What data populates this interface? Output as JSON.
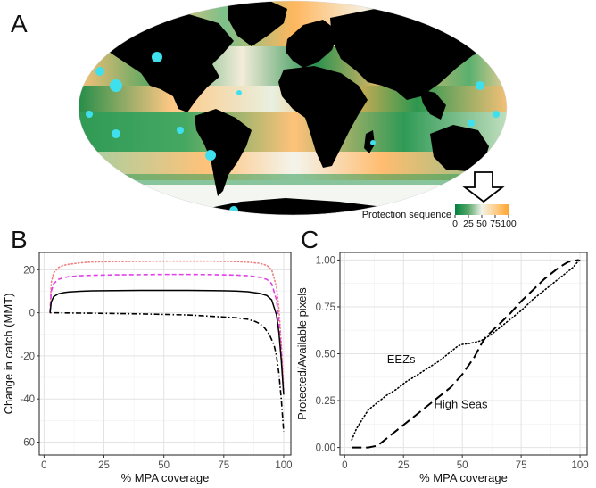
{
  "panels": {
    "a": {
      "letter": "A",
      "legend": {
        "title": "Protection sequence",
        "ticks": [
          "0",
          "25",
          "50",
          "75",
          "100"
        ],
        "colors": [
          "#00803c",
          "#5aa86b",
          "#f2f2ea",
          "#ffcf8a",
          "#ffa531"
        ]
      },
      "colors": {
        "ocean_green": "#259650",
        "ocean_orange": "#ffc27a",
        "land": "#000000",
        "ice": "#f4f7f4",
        "marker": "#3fe0ee"
      }
    },
    "b": {
      "letter": "B"
    },
    "c": {
      "letter": "C"
    }
  },
  "chart_data": [
    {
      "type": "map",
      "panel": "A",
      "legend_title": "Protection sequence",
      "legend_range": [
        0,
        100
      ],
      "legend_ticks": [
        0,
        25,
        50,
        75,
        100
      ]
    },
    {
      "type": "line",
      "panel": "B",
      "xlabel": "% MPA coverage",
      "ylabel": "Change in catch (MMT)",
      "xlim": [
        -2,
        103
      ],
      "ylim": [
        -66,
        28
      ],
      "xticks": [
        0,
        25,
        50,
        75,
        100
      ],
      "yticks": [
        -60,
        -40,
        -20,
        0,
        20
      ],
      "grid": true,
      "series": [
        {
          "style": "dotted",
          "color": "#f08080",
          "x": [
            2.5,
            3,
            4,
            6,
            8,
            10,
            15,
            20,
            30,
            40,
            50,
            60,
            70,
            80,
            85,
            90,
            93,
            95,
            97,
            98,
            99,
            100
          ],
          "y": [
            0,
            14,
            18.5,
            21,
            22,
            22.5,
            23.2,
            23.6,
            23.8,
            23.9,
            24,
            24,
            24,
            23.8,
            23.5,
            23,
            22,
            20,
            12,
            2,
            -14,
            -36
          ]
        },
        {
          "style": "dashed",
          "color": "#e040e8",
          "x": [
            2.5,
            3,
            4,
            6,
            8,
            10,
            15,
            20,
            30,
            40,
            50,
            60,
            70,
            80,
            85,
            90,
            93,
            95,
            97,
            98,
            99,
            100
          ],
          "y": [
            0,
            10,
            13.5,
            15.5,
            16.3,
            16.7,
            17.2,
            17.4,
            17.6,
            17.7,
            17.8,
            17.8,
            17.7,
            17.5,
            17.2,
            16.5,
            15.5,
            13.5,
            6,
            -4,
            -18,
            -38
          ]
        },
        {
          "style": "solid",
          "color": "#000000",
          "x": [
            2.5,
            3,
            4,
            6,
            8,
            10,
            15,
            20,
            30,
            40,
            50,
            60,
            70,
            80,
            85,
            90,
            93,
            95,
            97,
            98,
            99,
            100
          ],
          "y": [
            0,
            5,
            7.5,
            8.8,
            9.3,
            9.6,
            10,
            10.2,
            10.3,
            10.4,
            10.4,
            10.4,
            10.3,
            10.1,
            9.8,
            9,
            8,
            6,
            -1,
            -9,
            -22,
            -38
          ]
        },
        {
          "style": "dotdash",
          "color": "#000000",
          "x": [
            2.5,
            4,
            10,
            20,
            40,
            60,
            80,
            85,
            88,
            90,
            92,
            94,
            96,
            97,
            98,
            99,
            100
          ],
          "y": [
            0,
            0,
            -0.1,
            -0.2,
            -0.5,
            -1,
            -2.3,
            -3,
            -4,
            -5,
            -7,
            -10,
            -15,
            -20,
            -28,
            -40,
            -55
          ]
        }
      ]
    },
    {
      "type": "line",
      "panel": "C",
      "xlabel": "% MPA coverage",
      "ylabel": "Protected/Available pixels",
      "xlim": [
        -2,
        103
      ],
      "ylim": [
        -0.04,
        1.04
      ],
      "xticks": [
        0,
        25,
        50,
        75,
        100
      ],
      "yticks": [
        0,
        0.25,
        0.5,
        0.75,
        1
      ],
      "ytick_labels": [
        "0.00",
        "0.25",
        "0.50",
        "0.75",
        "1.00"
      ],
      "grid": true,
      "annotations": [
        {
          "text": "EEZs",
          "x": 18,
          "y": 0.47
        },
        {
          "text": "High Seas",
          "x": 38,
          "y": 0.23
        }
      ],
      "series": [
        {
          "name": "EEZs",
          "style": "dotted",
          "color": "#000000",
          "x": [
            3,
            5,
            8,
            10,
            12,
            15,
            18,
            22,
            26,
            30,
            35,
            40,
            45,
            48,
            50,
            53,
            55,
            58,
            62,
            66,
            70,
            75,
            80,
            85,
            90,
            93,
            95,
            97,
            98,
            99,
            100
          ],
          "y": [
            0.04,
            0.1,
            0.16,
            0.2,
            0.22,
            0.25,
            0.28,
            0.31,
            0.35,
            0.38,
            0.42,
            0.46,
            0.51,
            0.54,
            0.55,
            0.555,
            0.56,
            0.57,
            0.6,
            0.64,
            0.68,
            0.73,
            0.79,
            0.84,
            0.89,
            0.92,
            0.94,
            0.96,
            0.975,
            0.99,
            1.0
          ]
        },
        {
          "name": "High Seas",
          "style": "longdash",
          "color": "#000000",
          "x": [
            3,
            6,
            10,
            14,
            16,
            20,
            25,
            30,
            35,
            40,
            45,
            50,
            55,
            58,
            60,
            65,
            70,
            75,
            80,
            85,
            90,
            93,
            95,
            97,
            98.5,
            99.5
          ],
          "y": [
            0,
            0,
            0,
            0.01,
            0.03,
            0.07,
            0.12,
            0.17,
            0.22,
            0.27,
            0.32,
            0.39,
            0.48,
            0.55,
            0.59,
            0.65,
            0.71,
            0.78,
            0.84,
            0.9,
            0.95,
            0.975,
            0.99,
            0.995,
            0.998,
            1.0
          ]
        }
      ]
    }
  ]
}
